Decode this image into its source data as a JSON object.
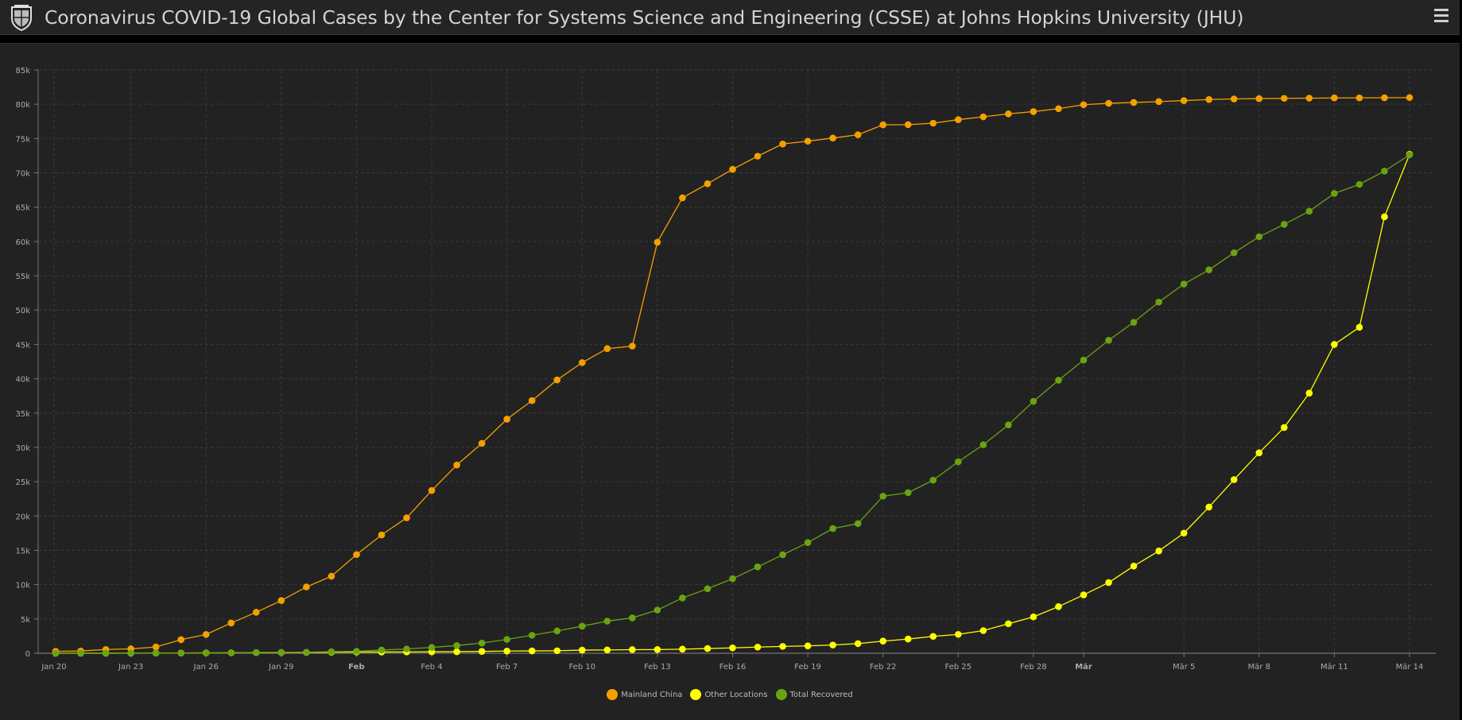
{
  "header": {
    "title": "Coronavirus COVID-19 Global Cases by the Center for Systems Science and Engineering (CSSE) at Johns Hopkins University (JHU)",
    "logo_icon": "jhu-shield-icon",
    "menu_icon": "hamburger-menu-icon"
  },
  "chart_data": {
    "type": "line",
    "title": "",
    "xlabel": "",
    "ylabel": "",
    "ylim": [
      0,
      85000
    ],
    "yticks": [
      "0",
      "5k",
      "10k",
      "15k",
      "20k",
      "25k",
      "30k",
      "35k",
      "40k",
      "45k",
      "50k",
      "55k",
      "60k",
      "65k",
      "70k",
      "75k",
      "80k",
      "85k"
    ],
    "x_start": "Jan 20",
    "x_end": "Mar 14",
    "n_days": 55,
    "xtick_labels": [
      {
        "day": 0,
        "label": "Jan 20"
      },
      {
        "day": 3,
        "label": "Jan 23"
      },
      {
        "day": 6,
        "label": "Jan 26"
      },
      {
        "day": 9,
        "label": "Jan 29"
      },
      {
        "day": 12,
        "label": "Feb",
        "bold": true
      },
      {
        "day": 15,
        "label": "Feb 4"
      },
      {
        "day": 18,
        "label": "Feb 7"
      },
      {
        "day": 21,
        "label": "Feb 10"
      },
      {
        "day": 24,
        "label": "Feb 13"
      },
      {
        "day": 27,
        "label": "Feb 16"
      },
      {
        "day": 30,
        "label": "Feb 19"
      },
      {
        "day": 33,
        "label": "Feb 22"
      },
      {
        "day": 36,
        "label": "Feb 25"
      },
      {
        "day": 39,
        "label": "Feb 28"
      },
      {
        "day": 41,
        "label": "Mär",
        "bold": true
      },
      {
        "day": 45,
        "label": "Mär 5"
      },
      {
        "day": 48,
        "label": "Mär 8"
      },
      {
        "day": 51,
        "label": "Mär 11"
      },
      {
        "day": 54,
        "label": "Mär 14"
      }
    ],
    "grid": true,
    "legend_position": "bottom-center",
    "series": [
      {
        "name": "Mainland China",
        "color": "#f5a000",
        "values": [
          278,
          326,
          547,
          639,
          916,
          1979,
          2737,
          4409,
          5970,
          7678,
          9658,
          11221,
          14375,
          17238,
          19733,
          23718,
          27429,
          30587,
          34110,
          36814,
          39829,
          42354,
          44386,
          44759,
          59895,
          66358,
          68413,
          70513,
          72434,
          74211,
          74619,
          75077,
          75550,
          77001,
          77022,
          77241,
          77754,
          78166,
          78600,
          78928,
          79356,
          79932,
          80136,
          80261,
          80386,
          80537,
          80690,
          80770,
          80823,
          80860,
          80887,
          80921,
          80932,
          80945,
          80977
        ]
      },
      {
        "name": "Other Locations",
        "color": "#ffff00",
        "values": [
          4,
          6,
          8,
          14,
          25,
          40,
          57,
          64,
          87,
          105,
          118,
          153,
          173,
          183,
          188,
          212,
          227,
          265,
          317,
          343,
          361,
          457,
          476,
          523,
          538,
          595,
          685,
          780,
          896,
          999,
          1073,
          1200,
          1402,
          1769,
          2069,
          2459,
          2750,
          3300,
          4300,
          5300,
          6800,
          8500,
          10300,
          12700,
          14900,
          17500,
          21300,
          25300,
          29200,
          32900,
          37900,
          45000,
          47500,
          63600,
          72700
        ]
      },
      {
        "name": "Total Recovered",
        "color": "#6aa312",
        "values": [
          28,
          30,
          28,
          30,
          36,
          39,
          52,
          61,
          107,
          126,
          143,
          222,
          284,
          472,
          623,
          852,
          1124,
          1487,
          2011,
          2616,
          3244,
          3946,
          4683,
          5150,
          6295,
          8058,
          9395,
          10865,
          12583,
          14352,
          16121,
          18177,
          18890,
          22886,
          23394,
          25227,
          27905,
          30384,
          33277,
          36711,
          39782,
          42716,
          45602,
          48228,
          51170,
          53796,
          55865,
          58358,
          60695,
          62494,
          64404,
          67003,
          68324,
          70251,
          72624
        ]
      }
    ]
  }
}
